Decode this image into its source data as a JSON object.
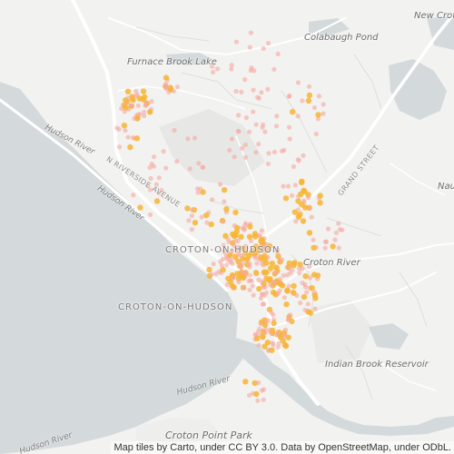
{
  "map": {
    "place_labels": {
      "new_croton": "New Croton",
      "colabaugh_pond": "Colabaugh Pond",
      "furnace_brook_lake": "Furnace Brook Lake",
      "croton_river": "Croton River",
      "indian_brook_reservoir": "Indian Brook Reservoir",
      "croton_point_park": "Croton Point Park",
      "nau": "Nau"
    },
    "town_labels": {
      "croton_north": "CROTON-ON-HUDSON",
      "croton_south": "CROTON-ON-HUDSON"
    },
    "road_labels": {
      "riverside_avenue": "N RIVERSIDE AVENUE",
      "grand_street": "GRAND STREET"
    },
    "water_labels": {
      "hudson_river_1": "Hudson River",
      "hudson_river_2": "Hudson River",
      "hudson_river_3": "Hudson River",
      "hudson_river_4": "Hudson River"
    },
    "colors": {
      "land": "#f2f2f0",
      "water": "#d4dadc",
      "road": "#ffffff",
      "point_light": "#f7a9a0",
      "point_dense": "#f7b531"
    },
    "attribution": "Map tiles by Carto, under CC BY 3.0. Data by OpenStreetMap, under ODbL."
  }
}
